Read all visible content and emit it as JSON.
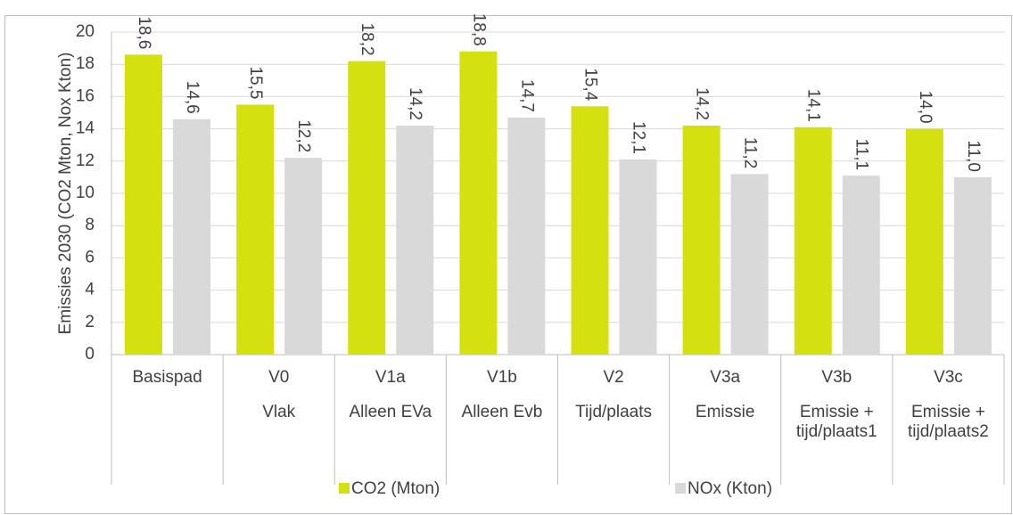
{
  "chart_data": {
    "type": "bar",
    "y_label": "Emissies 2030 (CO2 Mton, Nox Kton)",
    "categories": [
      "Basispad",
      "V0",
      "V1a",
      "V1b",
      "V2",
      "V3a",
      "V3b",
      "V3c"
    ],
    "subcategories": [
      null,
      "Vlak",
      "Alleen EVa",
      "Alleen Evb",
      "Tijd/plaats",
      "Emissie",
      "Emissie + tijd/plaats1",
      "Emissie + tijd/plaats2"
    ],
    "series": [
      {
        "name": "CO2 (Mton)",
        "color": "#d4e00f",
        "values": [
          18.6,
          15.5,
          18.2,
          18.8,
          15.4,
          14.2,
          14.1,
          14.0
        ],
        "value_labels": [
          "18,6",
          "15,5",
          "18,2",
          "18,8",
          "15,4",
          "14,2",
          "14,1",
          "14,0"
        ]
      },
      {
        "name": "NOx (Kton)",
        "color": "#d9d9d9",
        "values": [
          14.6,
          12.2,
          14.2,
          14.7,
          12.1,
          11.2,
          11.1,
          11.0
        ],
        "value_labels": [
          "14,6",
          "12,2",
          "14,2",
          "14,7",
          "12,1",
          "11,2",
          "11,1",
          "11,0"
        ]
      }
    ],
    "ylim": [
      0,
      20
    ],
    "yticks": [
      0,
      2,
      4,
      6,
      8,
      10,
      12,
      14,
      16,
      18,
      20
    ],
    "grid": true,
    "legend": "bottom"
  }
}
